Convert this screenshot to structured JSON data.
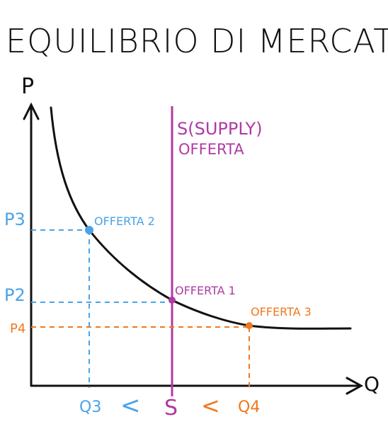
{
  "title": "EQUILIBRIO DI MERCATO",
  "axes": {
    "y_label": "P",
    "x_label": "Q"
  },
  "supply_label": [
    "S(SUPPLY)",
    "OFFERTA"
  ],
  "points": {
    "offerta2": {
      "label": "OFFERTA 2",
      "p_label": "P3",
      "q_label": "Q3",
      "color": "#4aa3e8"
    },
    "offerta1": {
      "label": "OFFERTA 1",
      "p_label": "P2",
      "q_label": "S",
      "color": "#b03aa4"
    },
    "offerta3": {
      "label": "OFFERTA 3",
      "p_label": "P4",
      "q_label": "Q4",
      "color": "#f0781e"
    }
  },
  "comparison": [
    "Q3",
    "<",
    "S",
    "<",
    "Q4"
  ],
  "colors": {
    "ink": "#111111",
    "blue": "#4aa3e8",
    "purple": "#b03aa4",
    "orange": "#f0781e"
  }
}
